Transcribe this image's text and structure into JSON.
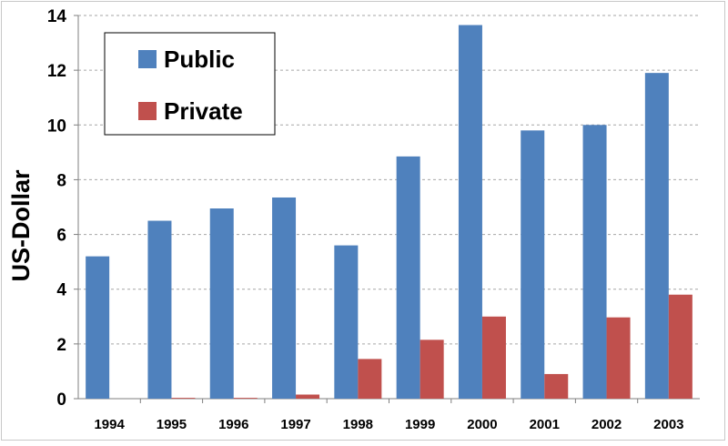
{
  "chart_data": {
    "type": "bar",
    "title": "",
    "xlabel": "",
    "ylabel": "US-Dollar",
    "ylim": [
      0,
      14
    ],
    "yticks": [
      0,
      2,
      4,
      6,
      8,
      10,
      12,
      14
    ],
    "grid": true,
    "legend_position": "top-left",
    "categories": [
      "1994",
      "1995",
      "1996",
      "1997",
      "1998",
      "1999",
      "2000",
      "2001",
      "2002",
      "2003"
    ],
    "series": [
      {
        "name": "Public",
        "color": "#4f81bd",
        "values": [
          5.2,
          6.5,
          6.95,
          7.35,
          5.6,
          8.85,
          13.65,
          9.8,
          10.0,
          11.9
        ]
      },
      {
        "name": "Private",
        "color": "#c0504d",
        "values": [
          0,
          0.03,
          0.03,
          0.15,
          1.45,
          2.15,
          3.0,
          0.9,
          2.97,
          3.8
        ]
      }
    ]
  }
}
